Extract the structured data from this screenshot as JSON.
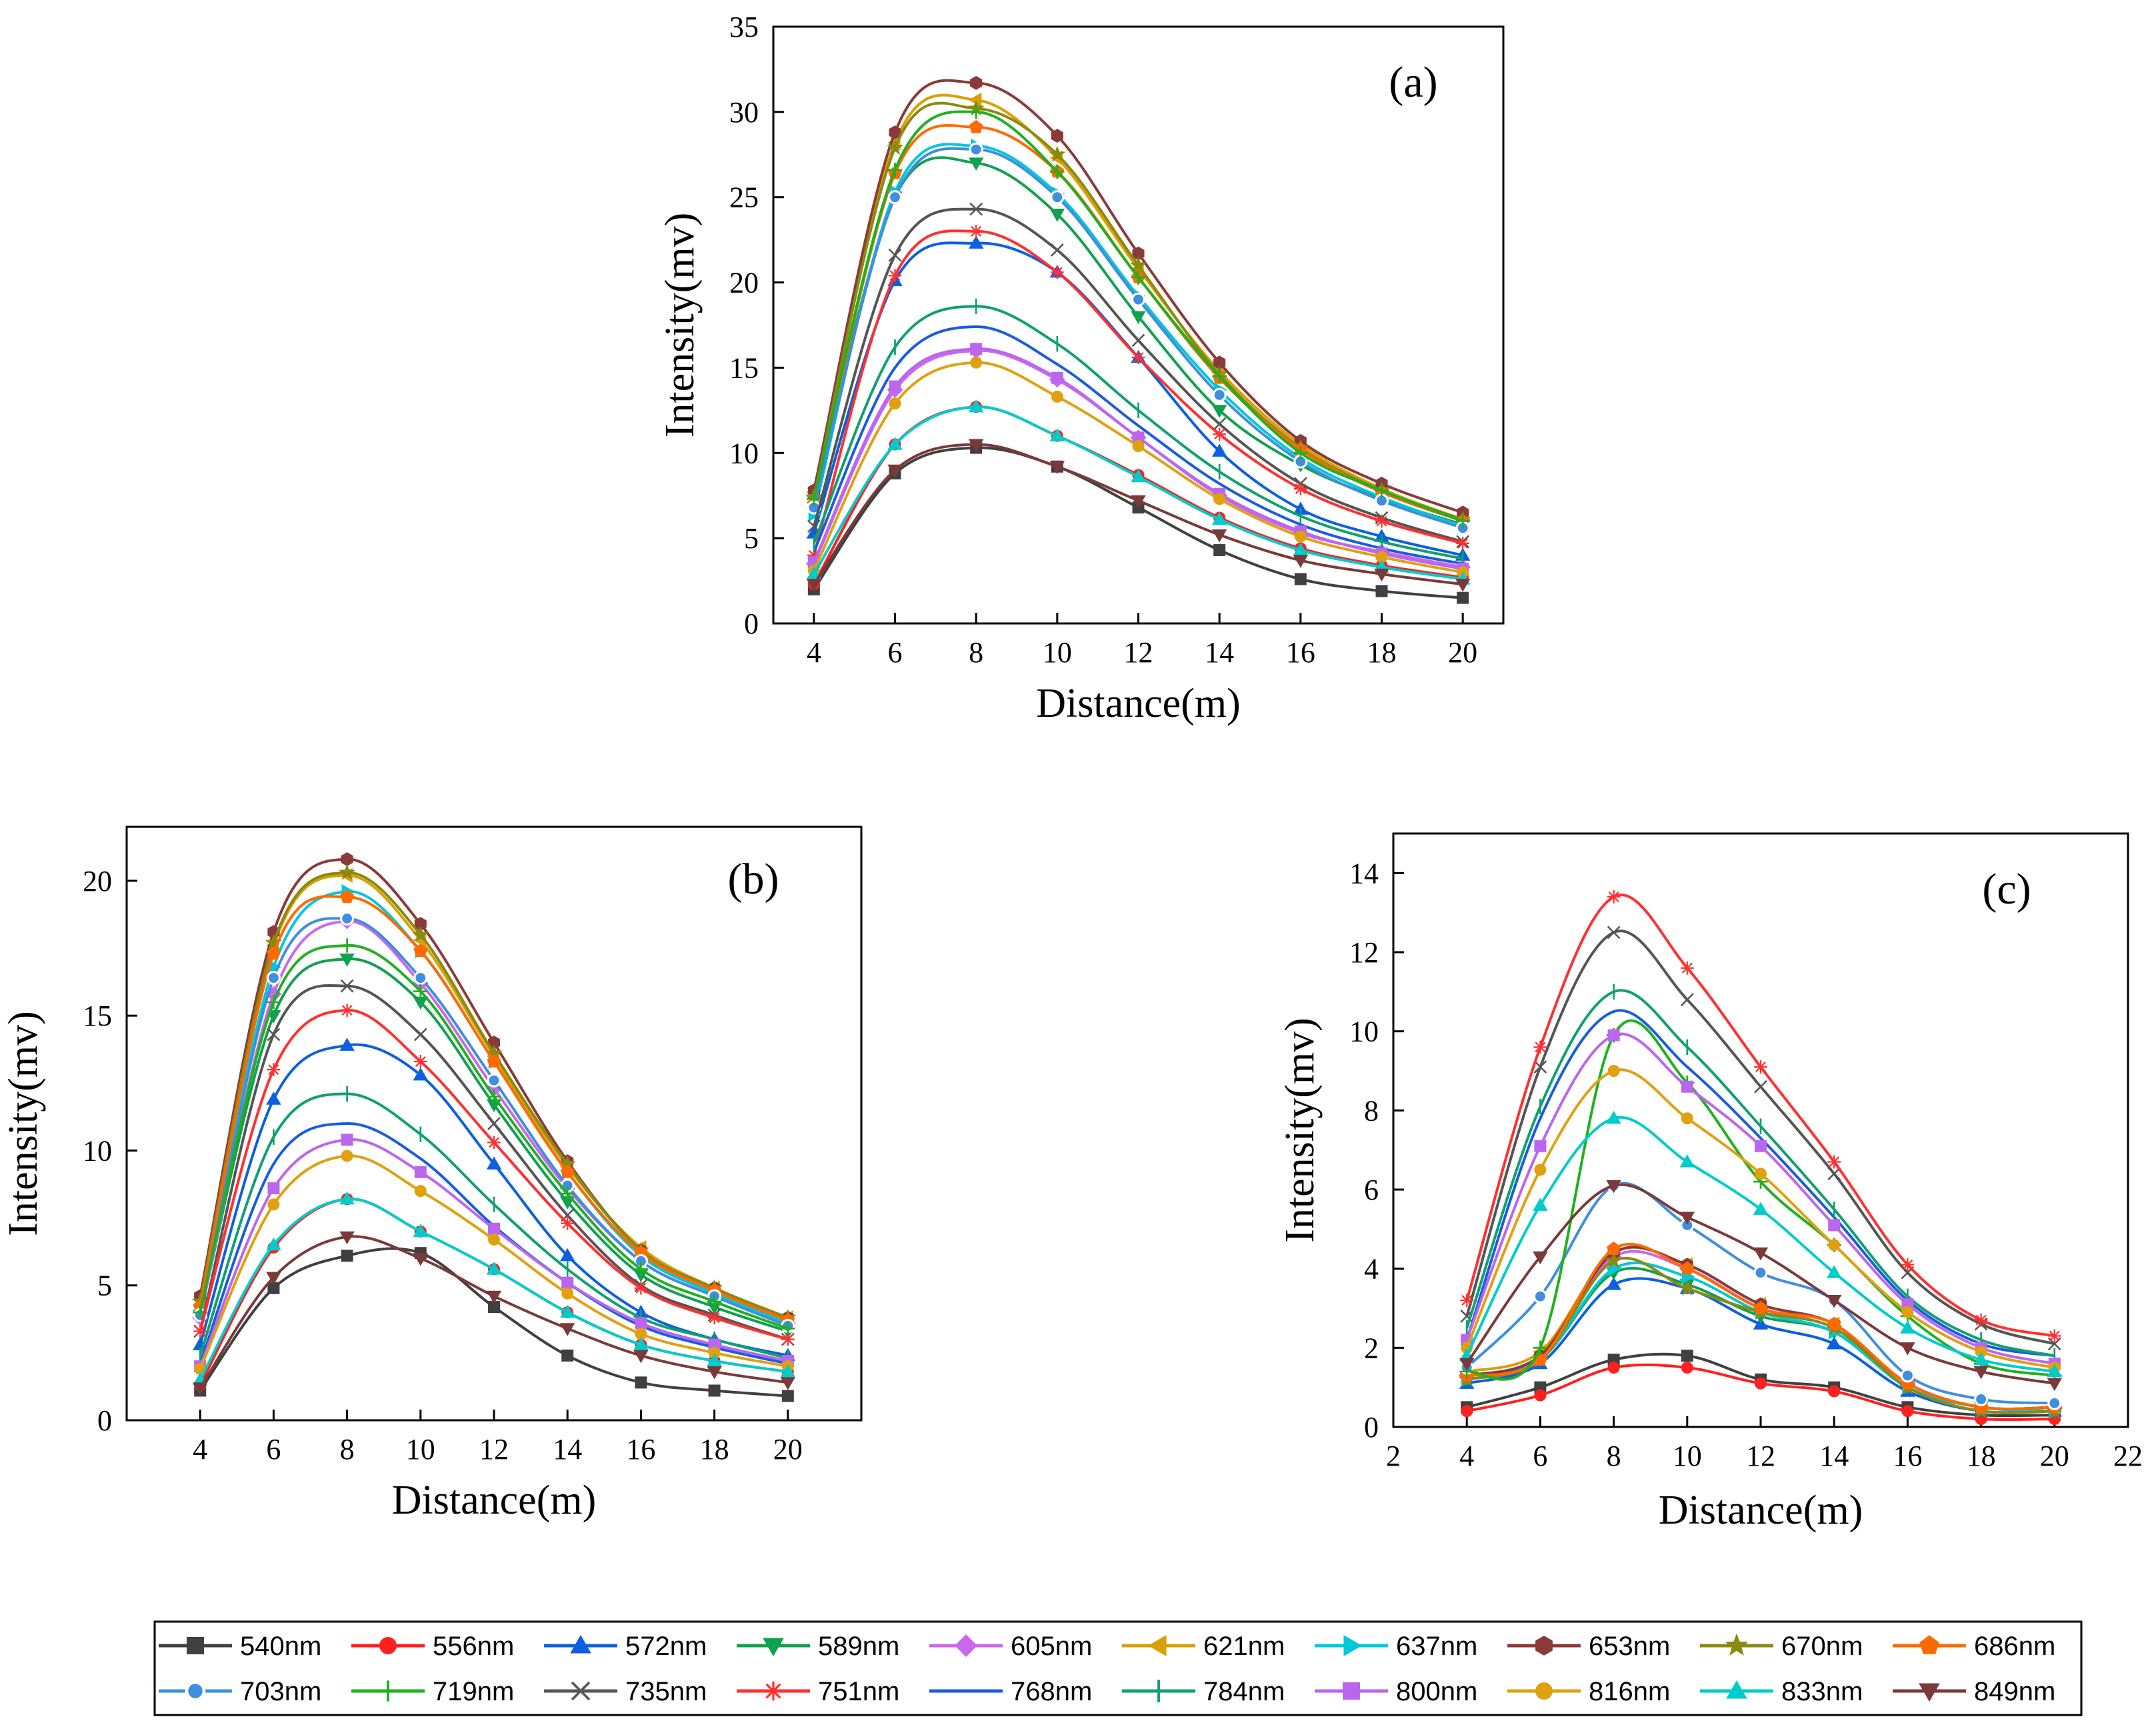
{
  "chart_data": [
    {
      "id": "a",
      "type": "line",
      "panel_label": "(a)",
      "xlabel": "Distance(m)",
      "ylabel": "Intensity(mv)",
      "xlim": [
        3,
        21
      ],
      "ylim": [
        0,
        35
      ],
      "xticks": [
        4,
        6,
        8,
        10,
        12,
        14,
        16,
        18,
        20
      ],
      "yticks": [
        0,
        5,
        10,
        15,
        20,
        25,
        30,
        35
      ],
      "x": [
        4,
        6,
        8,
        10,
        12,
        14,
        16,
        18,
        20
      ],
      "series": [
        {
          "name": "540nm",
          "values": [
            2.0,
            8.8,
            10.3,
            9.2,
            6.8,
            4.3,
            2.6,
            1.9,
            1.5
          ]
        },
        {
          "name": "556nm",
          "values": [
            2.3,
            10.5,
            12.7,
            11.0,
            8.7,
            6.2,
            4.4,
            3.4,
            2.7
          ]
        },
        {
          "name": "572nm",
          "values": [
            5.3,
            20.1,
            22.3,
            20.6,
            15.6,
            10.1,
            6.7,
            5.1,
            4.0
          ]
        },
        {
          "name": "589nm",
          "values": [
            7.2,
            25.0,
            27.0,
            24.0,
            18.0,
            12.5,
            9.3,
            7.3,
            5.8
          ]
        },
        {
          "name": "605nm",
          "values": [
            3.5,
            13.7,
            16.0,
            14.3,
            10.9,
            7.5,
            5.3,
            4.2,
            3.3
          ]
        },
        {
          "name": "621nm",
          "values": [
            7.7,
            28.2,
            30.7,
            27.3,
            20.8,
            14.8,
            10.5,
            7.9,
            6.1
          ]
        },
        {
          "name": "637nm",
          "values": [
            6.4,
            25.3,
            28.0,
            25.2,
            19.2,
            13.7,
            9.7,
            7.4,
            5.7
          ]
        },
        {
          "name": "653nm",
          "values": [
            7.8,
            28.8,
            31.7,
            28.6,
            21.7,
            15.3,
            10.7,
            8.2,
            6.5
          ]
        },
        {
          "name": "670nm",
          "values": [
            7.4,
            27.9,
            30.2,
            27.5,
            21.0,
            14.6,
            10.3,
            7.8,
            6.1
          ]
        },
        {
          "name": "686nm",
          "values": [
            7.0,
            26.4,
            29.1,
            26.5,
            20.3,
            14.4,
            10.2,
            7.7,
            6.0
          ]
        },
        {
          "name": "703nm",
          "values": [
            6.8,
            25.0,
            27.8,
            25.0,
            19.0,
            13.4,
            9.5,
            7.2,
            5.6
          ]
        },
        {
          "name": "719nm",
          "values": [
            7.3,
            26.6,
            30.0,
            26.5,
            20.3,
            14.5,
            10.0,
            7.8,
            6.0
          ]
        },
        {
          "name": "735nm",
          "values": [
            5.7,
            21.6,
            24.3,
            21.9,
            16.6,
            11.7,
            8.2,
            6.2,
            4.8
          ]
        },
        {
          "name": "751nm",
          "values": [
            4.0,
            20.4,
            23.0,
            20.6,
            15.6,
            11.1,
            7.9,
            6.0,
            4.7
          ]
        },
        {
          "name": "768nm",
          "values": [
            4.2,
            15.0,
            17.4,
            15.2,
            11.6,
            8.2,
            5.8,
            4.4,
            3.5
          ]
        },
        {
          "name": "784nm",
          "values": [
            4.7,
            16.2,
            18.6,
            16.4,
            12.5,
            8.9,
            6.3,
            4.8,
            3.8
          ]
        },
        {
          "name": "800nm",
          "values": [
            3.6,
            13.9,
            16.1,
            14.4,
            10.9,
            7.6,
            5.4,
            4.1,
            3.2
          ]
        },
        {
          "name": "816nm",
          "values": [
            3.1,
            12.9,
            15.3,
            13.3,
            10.4,
            7.3,
            5.1,
            3.9,
            3.0
          ]
        },
        {
          "name": "833nm",
          "values": [
            2.9,
            10.5,
            12.7,
            11.0,
            8.6,
            6.1,
            4.3,
            3.3,
            2.6
          ]
        },
        {
          "name": "849nm",
          "values": [
            2.3,
            9.0,
            10.5,
            9.2,
            7.2,
            5.2,
            3.7,
            2.9,
            2.3
          ]
        }
      ]
    },
    {
      "id": "b",
      "type": "line",
      "panel_label": "(b)",
      "xlabel": "Distance(m)",
      "ylabel": "Intensity(mv)",
      "xlim": [
        2,
        22
      ],
      "ylim": [
        0,
        22
      ],
      "xticks": [
        4,
        6,
        8,
        10,
        12,
        14,
        16,
        18,
        20
      ],
      "yticks": [
        0,
        5,
        10,
        15,
        20
      ],
      "x": [
        4,
        6,
        8,
        10,
        12,
        14,
        16,
        18,
        20
      ],
      "series": [
        {
          "name": "540nm",
          "values": [
            1.1,
            4.9,
            6.1,
            6.2,
            4.2,
            2.4,
            1.4,
            1.1,
            0.9
          ]
        },
        {
          "name": "556nm",
          "values": [
            1.3,
            6.4,
            8.2,
            7.0,
            5.6,
            4.0,
            2.8,
            2.2,
            1.8
          ]
        },
        {
          "name": "572nm",
          "values": [
            2.8,
            11.9,
            13.9,
            12.8,
            9.5,
            6.1,
            4.0,
            3.0,
            2.4
          ]
        },
        {
          "name": "589nm",
          "values": [
            3.9,
            15.0,
            17.1,
            15.5,
            11.7,
            8.1,
            5.4,
            4.2,
            3.3
          ]
        },
        {
          "name": "605nm",
          "values": [
            3.8,
            15.8,
            18.5,
            16.2,
            12.3,
            8.6,
            5.9,
            4.6,
            3.6
          ]
        },
        {
          "name": "621nm",
          "values": [
            4.3,
            17.6,
            20.2,
            17.8,
            13.5,
            9.4,
            6.4,
            4.9,
            3.8
          ]
        },
        {
          "name": "637nm",
          "values": [
            4.1,
            16.8,
            19.6,
            17.4,
            13.3,
            9.2,
            6.1,
            4.7,
            3.6
          ]
        },
        {
          "name": "653nm",
          "values": [
            4.6,
            18.1,
            20.8,
            18.4,
            14.0,
            9.6,
            6.3,
            4.9,
            3.8
          ]
        },
        {
          "name": "670nm",
          "values": [
            4.4,
            17.7,
            20.3,
            18.0,
            13.6,
            9.5,
            6.3,
            4.9,
            3.8
          ]
        },
        {
          "name": "686nm",
          "values": [
            4.2,
            17.3,
            19.4,
            17.4,
            13.3,
            9.2,
            6.2,
            4.8,
            3.7
          ]
        },
        {
          "name": "703nm",
          "values": [
            3.9,
            16.4,
            18.6,
            16.4,
            12.6,
            8.7,
            5.9,
            4.6,
            3.5
          ]
        },
        {
          "name": "719nm",
          "values": [
            4.0,
            15.5,
            17.6,
            15.9,
            12.0,
            8.4,
            5.6,
            4.4,
            3.4
          ]
        },
        {
          "name": "735nm",
          "values": [
            3.3,
            14.3,
            16.1,
            14.3,
            11.0,
            7.6,
            5.0,
            3.9,
            3.0
          ]
        },
        {
          "name": "751nm",
          "values": [
            3.3,
            13.0,
            15.2,
            13.3,
            10.3,
            7.3,
            4.9,
            3.8,
            3.0
          ]
        },
        {
          "name": "768nm",
          "values": [
            2.1,
            9.5,
            11.0,
            9.7,
            7.2,
            5.1,
            3.5,
            2.7,
            2.1
          ]
        },
        {
          "name": "784nm",
          "values": [
            2.4,
            10.5,
            12.1,
            10.6,
            8.0,
            5.6,
            3.8,
            3.0,
            2.3
          ]
        },
        {
          "name": "800nm",
          "values": [
            2.0,
            8.6,
            10.4,
            9.2,
            7.1,
            5.1,
            3.6,
            2.8,
            2.2
          ]
        },
        {
          "name": "816nm",
          "values": [
            1.9,
            8.0,
            9.8,
            8.5,
            6.7,
            4.7,
            3.2,
            2.5,
            2.0
          ]
        },
        {
          "name": "833nm",
          "values": [
            1.5,
            6.5,
            8.2,
            7.0,
            5.6,
            4.0,
            2.8,
            2.2,
            1.8
          ]
        },
        {
          "name": "849nm",
          "values": [
            1.2,
            5.3,
            6.8,
            6.0,
            4.6,
            3.4,
            2.4,
            1.8,
            1.4
          ]
        }
      ]
    },
    {
      "id": "c",
      "type": "line",
      "panel_label": "(c)",
      "xlabel": "Distance(m)",
      "ylabel": "Intensity(mv)",
      "xlim": [
        2,
        22
      ],
      "ylim": [
        0,
        15
      ],
      "xticks": [
        2,
        4,
        6,
        8,
        10,
        12,
        14,
        16,
        18,
        20,
        22
      ],
      "yticks": [
        0,
        2,
        4,
        6,
        8,
        10,
        12,
        14
      ],
      "x": [
        4,
        6,
        8,
        10,
        12,
        14,
        16,
        18,
        20
      ],
      "series": [
        {
          "name": "540nm",
          "values": [
            0.5,
            1.0,
            1.7,
            1.8,
            1.2,
            1.0,
            0.5,
            0.3,
            0.3
          ]
        },
        {
          "name": "556nm",
          "values": [
            0.4,
            0.8,
            1.5,
            1.5,
            1.1,
            0.9,
            0.4,
            0.2,
            0.2
          ]
        },
        {
          "name": "572nm",
          "values": [
            1.1,
            1.6,
            3.6,
            3.5,
            2.6,
            2.1,
            0.9,
            0.4,
            0.4
          ]
        },
        {
          "name": "589nm",
          "values": [
            1.2,
            1.7,
            3.9,
            3.6,
            2.8,
            2.4,
            1.0,
            0.5,
            0.4
          ]
        },
        {
          "name": "605nm",
          "values": [
            1.3,
            1.8,
            4.3,
            4.0,
            3.0,
            2.5,
            1.1,
            0.5,
            0.5
          ]
        },
        {
          "name": "621nm",
          "values": [
            1.4,
            1.9,
            4.4,
            4.1,
            3.1,
            2.6,
            1.1,
            0.5,
            0.5
          ]
        },
        {
          "name": "637nm",
          "values": [
            1.2,
            1.7,
            4.0,
            3.8,
            2.9,
            2.4,
            1.0,
            0.5,
            0.4
          ]
        },
        {
          "name": "653nm",
          "values": [
            1.3,
            1.8,
            4.4,
            4.1,
            3.1,
            2.6,
            1.1,
            0.5,
            0.5
          ]
        },
        {
          "name": "670nm",
          "values": [
            1.2,
            1.7,
            4.2,
            3.5,
            2.9,
            2.5,
            1.0,
            0.4,
            0.4
          ]
        },
        {
          "name": "686nm",
          "values": [
            1.3,
            1.7,
            4.5,
            4.0,
            3.0,
            2.6,
            1.1,
            0.5,
            0.5
          ]
        },
        {
          "name": "703nm",
          "values": [
            1.5,
            3.3,
            6.1,
            5.1,
            3.9,
            3.2,
            1.3,
            0.7,
            0.6
          ]
        },
        {
          "name": "719nm",
          "values": [
            1.4,
            2.0,
            9.9,
            8.7,
            6.2,
            4.6,
            2.8,
            1.6,
            1.3
          ]
        },
        {
          "name": "735nm",
          "values": [
            2.8,
            9.1,
            12.5,
            10.8,
            8.6,
            6.4,
            3.9,
            2.6,
            2.1
          ]
        },
        {
          "name": "751nm",
          "values": [
            3.2,
            9.6,
            13.4,
            11.6,
            9.1,
            6.7,
            4.1,
            2.7,
            2.3
          ]
        },
        {
          "name": "768nm",
          "values": [
            2.2,
            7.8,
            10.5,
            9.1,
            7.3,
            5.3,
            3.2,
            2.1,
            1.8
          ]
        },
        {
          "name": "784nm",
          "values": [
            2.5,
            8.1,
            11.0,
            9.6,
            7.6,
            5.5,
            3.3,
            2.2,
            1.8
          ]
        },
        {
          "name": "800nm",
          "values": [
            2.2,
            7.1,
            9.9,
            8.6,
            7.1,
            5.1,
            3.1,
            2.0,
            1.6
          ]
        },
        {
          "name": "816nm",
          "values": [
            2.0,
            6.5,
            9.0,
            7.8,
            6.4,
            4.6,
            2.9,
            1.9,
            1.5
          ]
        },
        {
          "name": "833nm",
          "values": [
            1.8,
            5.6,
            7.8,
            6.7,
            5.5,
            3.9,
            2.5,
            1.7,
            1.4
          ]
        },
        {
          "name": "849nm",
          "values": [
            1.6,
            4.3,
            6.1,
            5.3,
            4.4,
            3.2,
            2.0,
            1.4,
            1.1
          ]
        }
      ]
    }
  ],
  "legend": {
    "items": [
      {
        "name": "540nm",
        "color": "#404040",
        "marker": "square"
      },
      {
        "name": "556nm",
        "color": "#ff2020",
        "marker": "circle"
      },
      {
        "name": "572nm",
        "color": "#0a60e0",
        "marker": "triangle-up"
      },
      {
        "name": "589nm",
        "color": "#10a050",
        "marker": "triangle-down"
      },
      {
        "name": "605nm",
        "color": "#cc66ee",
        "marker": "diamond"
      },
      {
        "name": "621nm",
        "color": "#d9a000",
        "marker": "triangle-left"
      },
      {
        "name": "637nm",
        "color": "#00c8d8",
        "marker": "triangle-right"
      },
      {
        "name": "653nm",
        "color": "#8b3a3a",
        "marker": "hexagon"
      },
      {
        "name": "670nm",
        "color": "#8a8a10",
        "marker": "star"
      },
      {
        "name": "686nm",
        "color": "#ff6a00",
        "marker": "pentagon"
      },
      {
        "name": "703nm",
        "color": "#3f8ee0",
        "marker": "ball"
      },
      {
        "name": "719nm",
        "color": "#20b020",
        "marker": "plus"
      },
      {
        "name": "735nm",
        "color": "#555555",
        "marker": "cross"
      },
      {
        "name": "751nm",
        "color": "#ff3030",
        "marker": "asterisk"
      },
      {
        "name": "768nm",
        "color": "#1a5ce0",
        "marker": "none"
      },
      {
        "name": "784nm",
        "color": "#10a070",
        "marker": "bar"
      },
      {
        "name": "800nm",
        "color": "#bb66ee",
        "marker": "square"
      },
      {
        "name": "816nm",
        "color": "#e0a010",
        "marker": "circle"
      },
      {
        "name": "833nm",
        "color": "#00cccc",
        "marker": "triangle-up"
      },
      {
        "name": "849nm",
        "color": "#7a3a3a",
        "marker": "triangle-down"
      }
    ]
  }
}
